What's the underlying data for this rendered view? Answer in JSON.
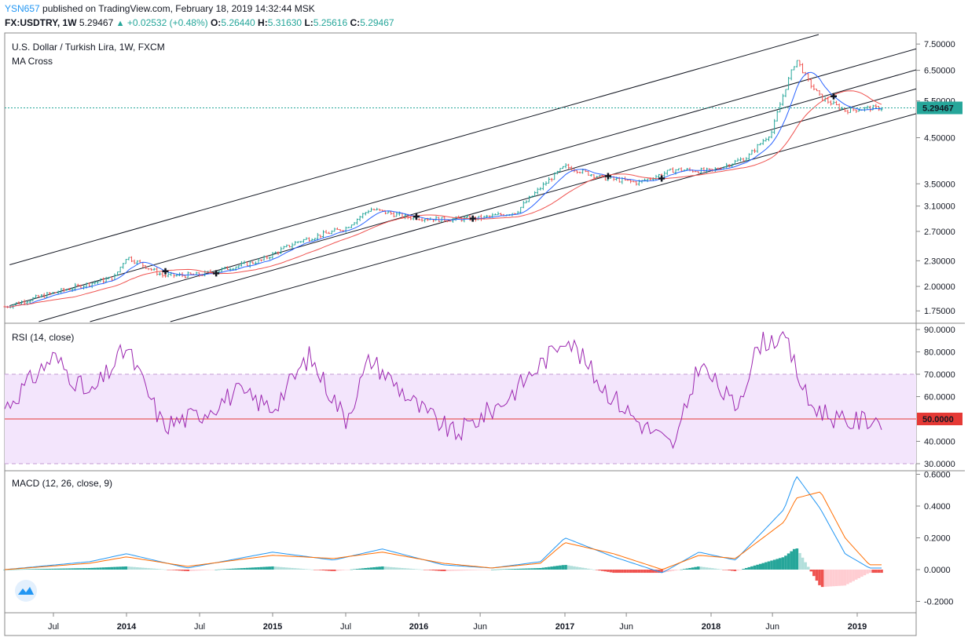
{
  "header": {
    "username": "YSN657",
    "published_text": "published on TradingView.com, February 18, 2019 14:32:44 MSK",
    "symbol": "FX:USDTRY, 1W",
    "last": "5.29467",
    "change": "+0.02532 (+0.48%)",
    "o_label": "O:",
    "o": "5.26440",
    "h_label": "H:",
    "h": "5.31630",
    "l_label": "L:",
    "l": "5.25616",
    "c_label": "C:",
    "c": "5.29467"
  },
  "price_pane": {
    "title": "U.S. Dollar / Turkish Lira, 1W, FXCM",
    "study": "MA Cross",
    "ticks": [
      "7.50000",
      "6.50000",
      "5.50000",
      "4.50000",
      "3.50000",
      "3.10000",
      "2.70000",
      "2.30000",
      "2.00000",
      "1.75000"
    ],
    "last_label": "5.29467"
  },
  "rsi_pane": {
    "title": "RSI (14, close)",
    "ticks": [
      "90.0000",
      "80.0000",
      "70.0000",
      "60.0000",
      "40.0000",
      "30.0000"
    ],
    "mid_label": "50.0000"
  },
  "macd_pane": {
    "title": "MACD (12, 26, close, 9)",
    "ticks": [
      "0.6000",
      "0.4000",
      "0.2000",
      "0.0000",
      "-0.2000"
    ]
  },
  "x_axis": {
    "labels": [
      "Jul",
      "2014",
      "Jul",
      "2015",
      "Jul",
      "2016",
      "Jun",
      "2017",
      "Jun",
      "2018",
      "Jun",
      "2019"
    ]
  },
  "colors": {
    "up": "#26a69a",
    "down": "#ef5350",
    "rsi": "#9c27b0",
    "macd": "#2196f3",
    "signal": "#ff6d00",
    "ma_fast": "#2962ff",
    "ma_slow": "#ef5350",
    "accent": "#2196f3"
  },
  "chart_data": [
    {
      "type": "line",
      "title": "U.S. Dollar / Turkish Lira, 1W, FXCM",
      "ylim": [
        1.65,
        7.9
      ],
      "scale": "log",
      "series": [
        {
          "name": "",
          "x": [
            "2013-03",
            "2013-07",
            "2013-12",
            "2014-01",
            "2014-04",
            "2014-07",
            "2014-12",
            "2015-03",
            "2015-07",
            "2015-09",
            "2015-12",
            "2016-03",
            "2016-06",
            "2016-09",
            "2017-01",
            "2017-04",
            "2017-07",
            "2017-10",
            "2018-01",
            "2018-04",
            "2018-06",
            "2018-08",
            "2018-09",
            "2018-10",
            "2018-12",
            "2019-02"
          ],
          "values": [
            1.79,
            1.93,
            2.1,
            2.35,
            2.12,
            2.13,
            2.3,
            2.55,
            2.75,
            3.05,
            2.92,
            2.88,
            2.9,
            3.0,
            3.85,
            3.62,
            3.52,
            3.78,
            3.75,
            4.05,
            4.65,
            6.9,
            6.1,
            5.6,
            5.22,
            5.29
          ]
        }
      ]
    },
    {
      "type": "line",
      "title": "RSI (14, close)",
      "ylim": [
        30,
        90
      ],
      "series": [
        {
          "name": "",
          "x": [
            "2013-03",
            "2013-07",
            "2013-10",
            "2014-01",
            "2014-04",
            "2014-07",
            "2014-10",
            "2015-01",
            "2015-04",
            "2015-07",
            "2015-09",
            "2016-01",
            "2016-04",
            "2016-08",
            "2016-12",
            "2017-01",
            "2017-04",
            "2017-07",
            "2017-10",
            "2017-12",
            "2018-03",
            "2018-05",
            "2018-07",
            "2018-09",
            "2018-12",
            "2019-02"
          ],
          "values": [
            55,
            78,
            60,
            82,
            47,
            52,
            62,
            55,
            78,
            50,
            77,
            55,
            43,
            58,
            80,
            88,
            65,
            49,
            37,
            75,
            55,
            84,
            87,
            57,
            48,
            50
          ]
        }
      ]
    },
    {
      "type": "line",
      "title": "MACD (12, 26, close, 9)",
      "ylim": [
        -0.26,
        0.62
      ],
      "series": [
        {
          "name": "",
          "x": [
            "2013-03",
            "2013-10",
            "2014-01",
            "2014-06",
            "2015-01",
            "2015-06",
            "2015-10",
            "2016-03",
            "2016-07",
            "2016-11",
            "2017-01",
            "2017-05",
            "2017-09",
            "2017-12",
            "2018-03",
            "2018-07",
            "2018-08",
            "2018-10",
            "2018-12",
            "2019-02"
          ],
          "values": [
            0.0,
            0.05,
            0.1,
            0.01,
            0.11,
            0.06,
            0.13,
            0.03,
            0.01,
            0.05,
            0.2,
            0.08,
            -0.02,
            0.11,
            0.06,
            0.38,
            0.59,
            0.38,
            0.1,
            0.01
          ]
        },
        {
          "name": "",
          "x": [
            "2013-03",
            "2013-10",
            "2014-01",
            "2014-06",
            "2015-01",
            "2015-06",
            "2015-10",
            "2016-03",
            "2016-07",
            "2016-11",
            "2017-01",
            "2017-05",
            "2017-09",
            "2017-12",
            "2018-03",
            "2018-07",
            "2018-08",
            "2018-10",
            "2018-12",
            "2019-02"
          ],
          "values": [
            0.0,
            0.04,
            0.08,
            0.02,
            0.09,
            0.07,
            0.11,
            0.04,
            0.01,
            0.04,
            0.17,
            0.1,
            0.0,
            0.09,
            0.07,
            0.3,
            0.45,
            0.49,
            0.2,
            0.03
          ]
        }
      ]
    }
  ]
}
